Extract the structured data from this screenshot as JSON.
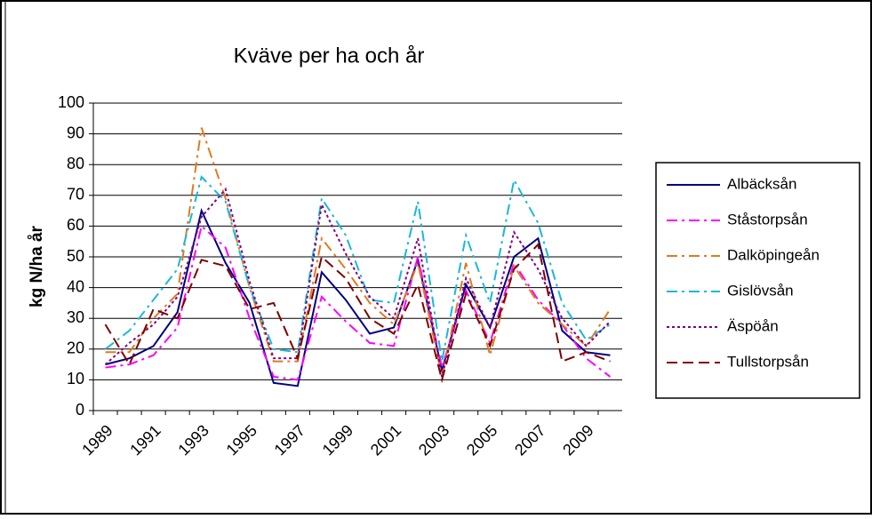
{
  "chart_data": {
    "type": "line",
    "title": "Kväve per ha och år",
    "y_label": "kg N/ha år",
    "categories": [
      "1989",
      null,
      "1991",
      null,
      "1993",
      null,
      "1995",
      null,
      "1997",
      null,
      "1999",
      null,
      "2001",
      null,
      "2003",
      null,
      "2005",
      null,
      "2007",
      null,
      "2009",
      null
    ],
    "ylim": [
      0,
      100
    ],
    "yticks": [
      0,
      10,
      20,
      30,
      40,
      50,
      60,
      70,
      80,
      90,
      100
    ],
    "grid": true,
    "legend": "right",
    "series": [
      {
        "name": "Albäcksån",
        "color": "#000080",
        "dash": "solid",
        "values": [
          15,
          17,
          21,
          32,
          65,
          48,
          35,
          9,
          8,
          45,
          36,
          25,
          27,
          49,
          13,
          41,
          27,
          50,
          56,
          26,
          19,
          18
        ]
      },
      {
        "name": "Ståstorpsån",
        "color": "#ff00ff",
        "dash": "dashdot",
        "values": [
          14,
          15,
          18,
          27,
          60,
          53,
          30,
          11,
          10,
          37,
          29,
          22,
          21,
          50,
          14,
          39,
          22,
          48,
          36,
          28,
          17,
          11
        ]
      },
      {
        "name": "Dalköpingeån",
        "color": "#e07b20",
        "dash": "dashdot",
        "values": [
          19,
          19,
          30,
          38,
          92,
          69,
          40,
          16,
          16,
          56,
          46,
          35,
          28,
          48,
          11,
          48,
          18,
          47,
          35,
          28,
          21,
          33
        ]
      },
      {
        "name": "Gislövsån",
        "color": "#1ab8d8",
        "dash": "dashdot",
        "values": [
          20,
          26,
          36,
          46,
          76,
          68,
          40,
          20,
          19,
          69,
          57,
          36,
          35,
          68,
          16,
          57,
          35,
          75,
          61,
          35,
          23,
          28
        ]
      },
      {
        "name": "Äspöån",
        "color": "#800080",
        "dash": "dot",
        "values": [
          15,
          22,
          28,
          37,
          63,
          72,
          42,
          17,
          17,
          67,
          51,
          37,
          30,
          56,
          11,
          43,
          27,
          58,
          46,
          30,
          21,
          29
        ]
      },
      {
        "name": "Tullstorpsån",
        "color": "#800000",
        "dash": "dash",
        "values": [
          28,
          15,
          33,
          30,
          49,
          47,
          33,
          35,
          17,
          50,
          43,
          30,
          25,
          41,
          10,
          38,
          21,
          46,
          54,
          16,
          19,
          16
        ]
      }
    ]
  }
}
